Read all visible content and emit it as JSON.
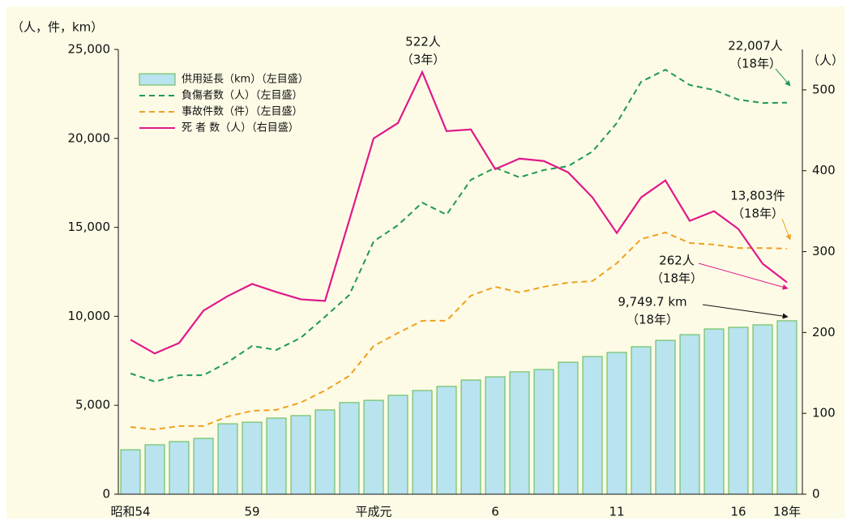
{
  "chart_data": {
    "type": "bar-line",
    "y_axis_unit": "（人，件，km）",
    "y2_axis_unit": "（人）",
    "categories": [
      "昭和54",
      null,
      null,
      null,
      null,
      "59",
      null,
      null,
      null,
      null,
      "平成元",
      null,
      null,
      null,
      null,
      "6",
      null,
      null,
      null,
      null,
      "11",
      null,
      null,
      null,
      null,
      "16",
      null,
      "18年"
    ],
    "ylim": [
      0,
      25000
    ],
    "yticks": [
      0,
      {
        "value": 5000,
        "label": "5,000"
      },
      {
        "value": 10000,
        "label": "10,000"
      },
      {
        "value": 15000,
        "label": "15,000"
      },
      {
        "value": 20000,
        "label": "20,000"
      },
      {
        "value": 25000,
        "label": "25,000"
      }
    ],
    "y2lim": [
      0,
      550
    ],
    "y2ticks": [
      0,
      100,
      200,
      300,
      400,
      500
    ],
    "series": [
      {
        "name": "供用延長（km）（左目盛）",
        "kind": "bar",
        "color": "#b9e3ef",
        "stroke": "#5cb84a",
        "values": [
          2500,
          2780,
          2960,
          3140,
          3960,
          4050,
          4280,
          4420,
          4740,
          5150,
          5280,
          5560,
          5830,
          6060,
          6420,
          6600,
          6880,
          7010,
          7420,
          7740,
          7970,
          8290,
          8650,
          8970,
          9290,
          9380,
          9520,
          9749.7
        ],
        "value_labels": [
          null,
          null,
          null,
          null,
          null,
          null,
          null,
          null,
          null,
          null,
          null,
          null,
          null,
          null,
          null,
          null,
          null,
          null,
          null,
          null,
          null,
          null,
          null,
          null,
          null,
          null,
          null,
          "9,749.7 km"
        ]
      },
      {
        "name": "負傷者数（人）（左目盛）",
        "kind": "dashed",
        "color": "#1f9a50",
        "values": [
          6790,
          6330,
          6690,
          6690,
          7420,
          8330,
          8110,
          8790,
          9970,
          11200,
          14210,
          15120,
          16390,
          15710,
          17670,
          18350,
          17810,
          18220,
          18440,
          19260,
          20860,
          23180,
          23860,
          23000,
          22720,
          22180,
          21990,
          22007
        ],
        "value_labels": [
          null,
          null,
          null,
          null,
          null,
          null,
          null,
          null,
          null,
          null,
          null,
          null,
          null,
          null,
          null,
          null,
          null,
          null,
          null,
          null,
          null,
          null,
          null,
          null,
          null,
          null,
          null,
          "22,007人"
        ]
      },
      {
        "name": "事故件数（件）（左目盛）",
        "kind": "dashed",
        "color": "#f0a020",
        "values": [
          3780,
          3640,
          3830,
          3830,
          4370,
          4690,
          4740,
          5150,
          5830,
          6650,
          8330,
          9060,
          9750,
          9750,
          11160,
          11660,
          11340,
          11660,
          11890,
          11980,
          12980,
          14340,
          14710,
          14120,
          14030,
          13840,
          13840,
          13803
        ],
        "value_labels": [
          null,
          null,
          null,
          null,
          null,
          null,
          null,
          null,
          null,
          null,
          null,
          null,
          null,
          null,
          null,
          null,
          null,
          null,
          null,
          null,
          null,
          null,
          null,
          null,
          null,
          null,
          null,
          "13,803件"
        ]
      },
      {
        "name": "死 者 数（人）（右目盛）",
        "kind": "solid",
        "axis": "y2",
        "color": "#e0198a",
        "values": [
          191,
          174,
          187,
          227,
          245,
          260,
          250,
          241,
          239,
          339,
          440,
          459,
          522,
          449,
          451,
          402,
          415,
          412,
          398,
          367,
          323,
          367,
          388,
          338,
          350,
          328,
          285,
          262
        ],
        "value_labels": [
          null,
          null,
          null,
          null,
          null,
          null,
          null,
          null,
          null,
          null,
          null,
          null,
          "522人",
          null,
          null,
          null,
          null,
          null,
          null,
          null,
          null,
          null,
          null,
          null,
          null,
          null,
          null,
          "262人"
        ]
      }
    ],
    "year_notes": [
      "（3年）",
      "（18年）"
    ]
  }
}
